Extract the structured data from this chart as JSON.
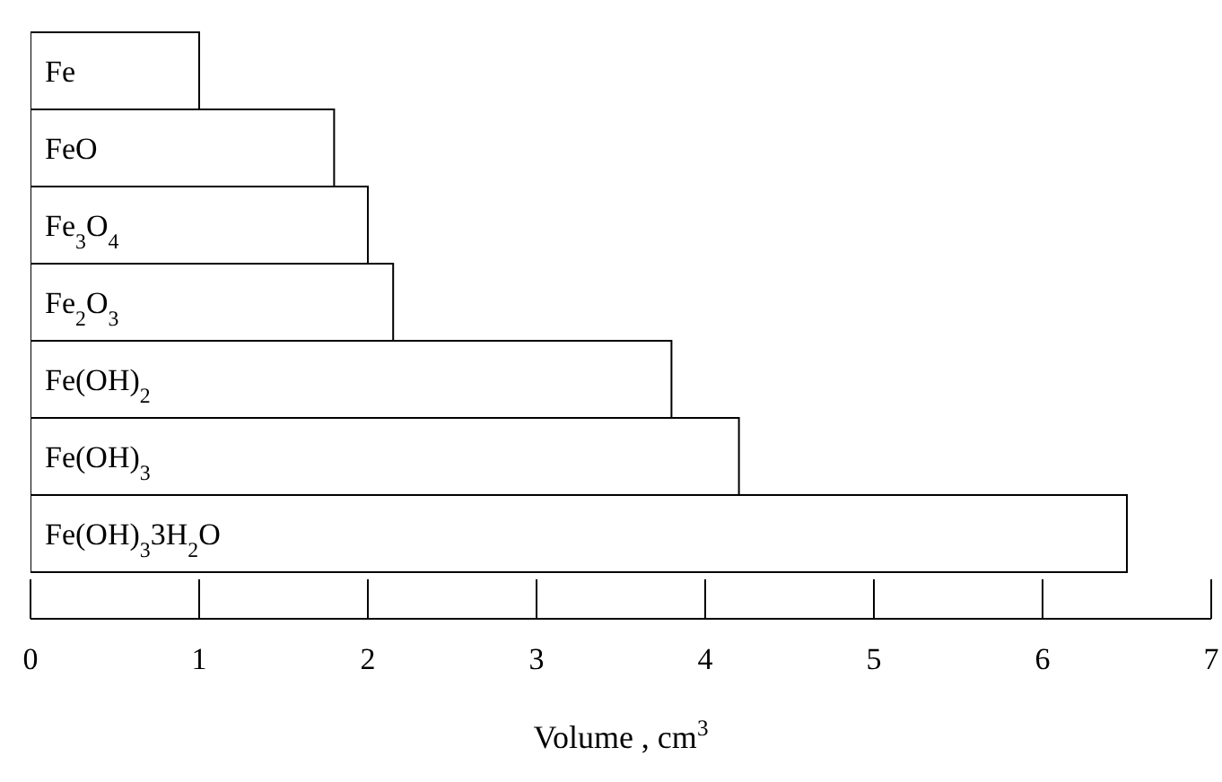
{
  "chart_data": {
    "type": "bar",
    "orientation": "horizontal",
    "xlabel": "Volume , cm$^{3}$",
    "categories": [
      "Fe",
      "FeO",
      "Fe$_{3}$O$_{4}$",
      "Fe$_{2}$O$_{3}$",
      "Fe(OH)$_{2}$",
      "Fe(OH)$_{3}$",
      "Fe(OH)$_{3}$3H$_{2}$O"
    ],
    "values": [
      1.0,
      1.8,
      2.0,
      2.15,
      3.8,
      4.2,
      6.5
    ],
    "color": "#ffffff",
    "xlim": [
      0,
      7
    ],
    "xticks": [
      0,
      1,
      2,
      3,
      4,
      5,
      6,
      7
    ]
  }
}
